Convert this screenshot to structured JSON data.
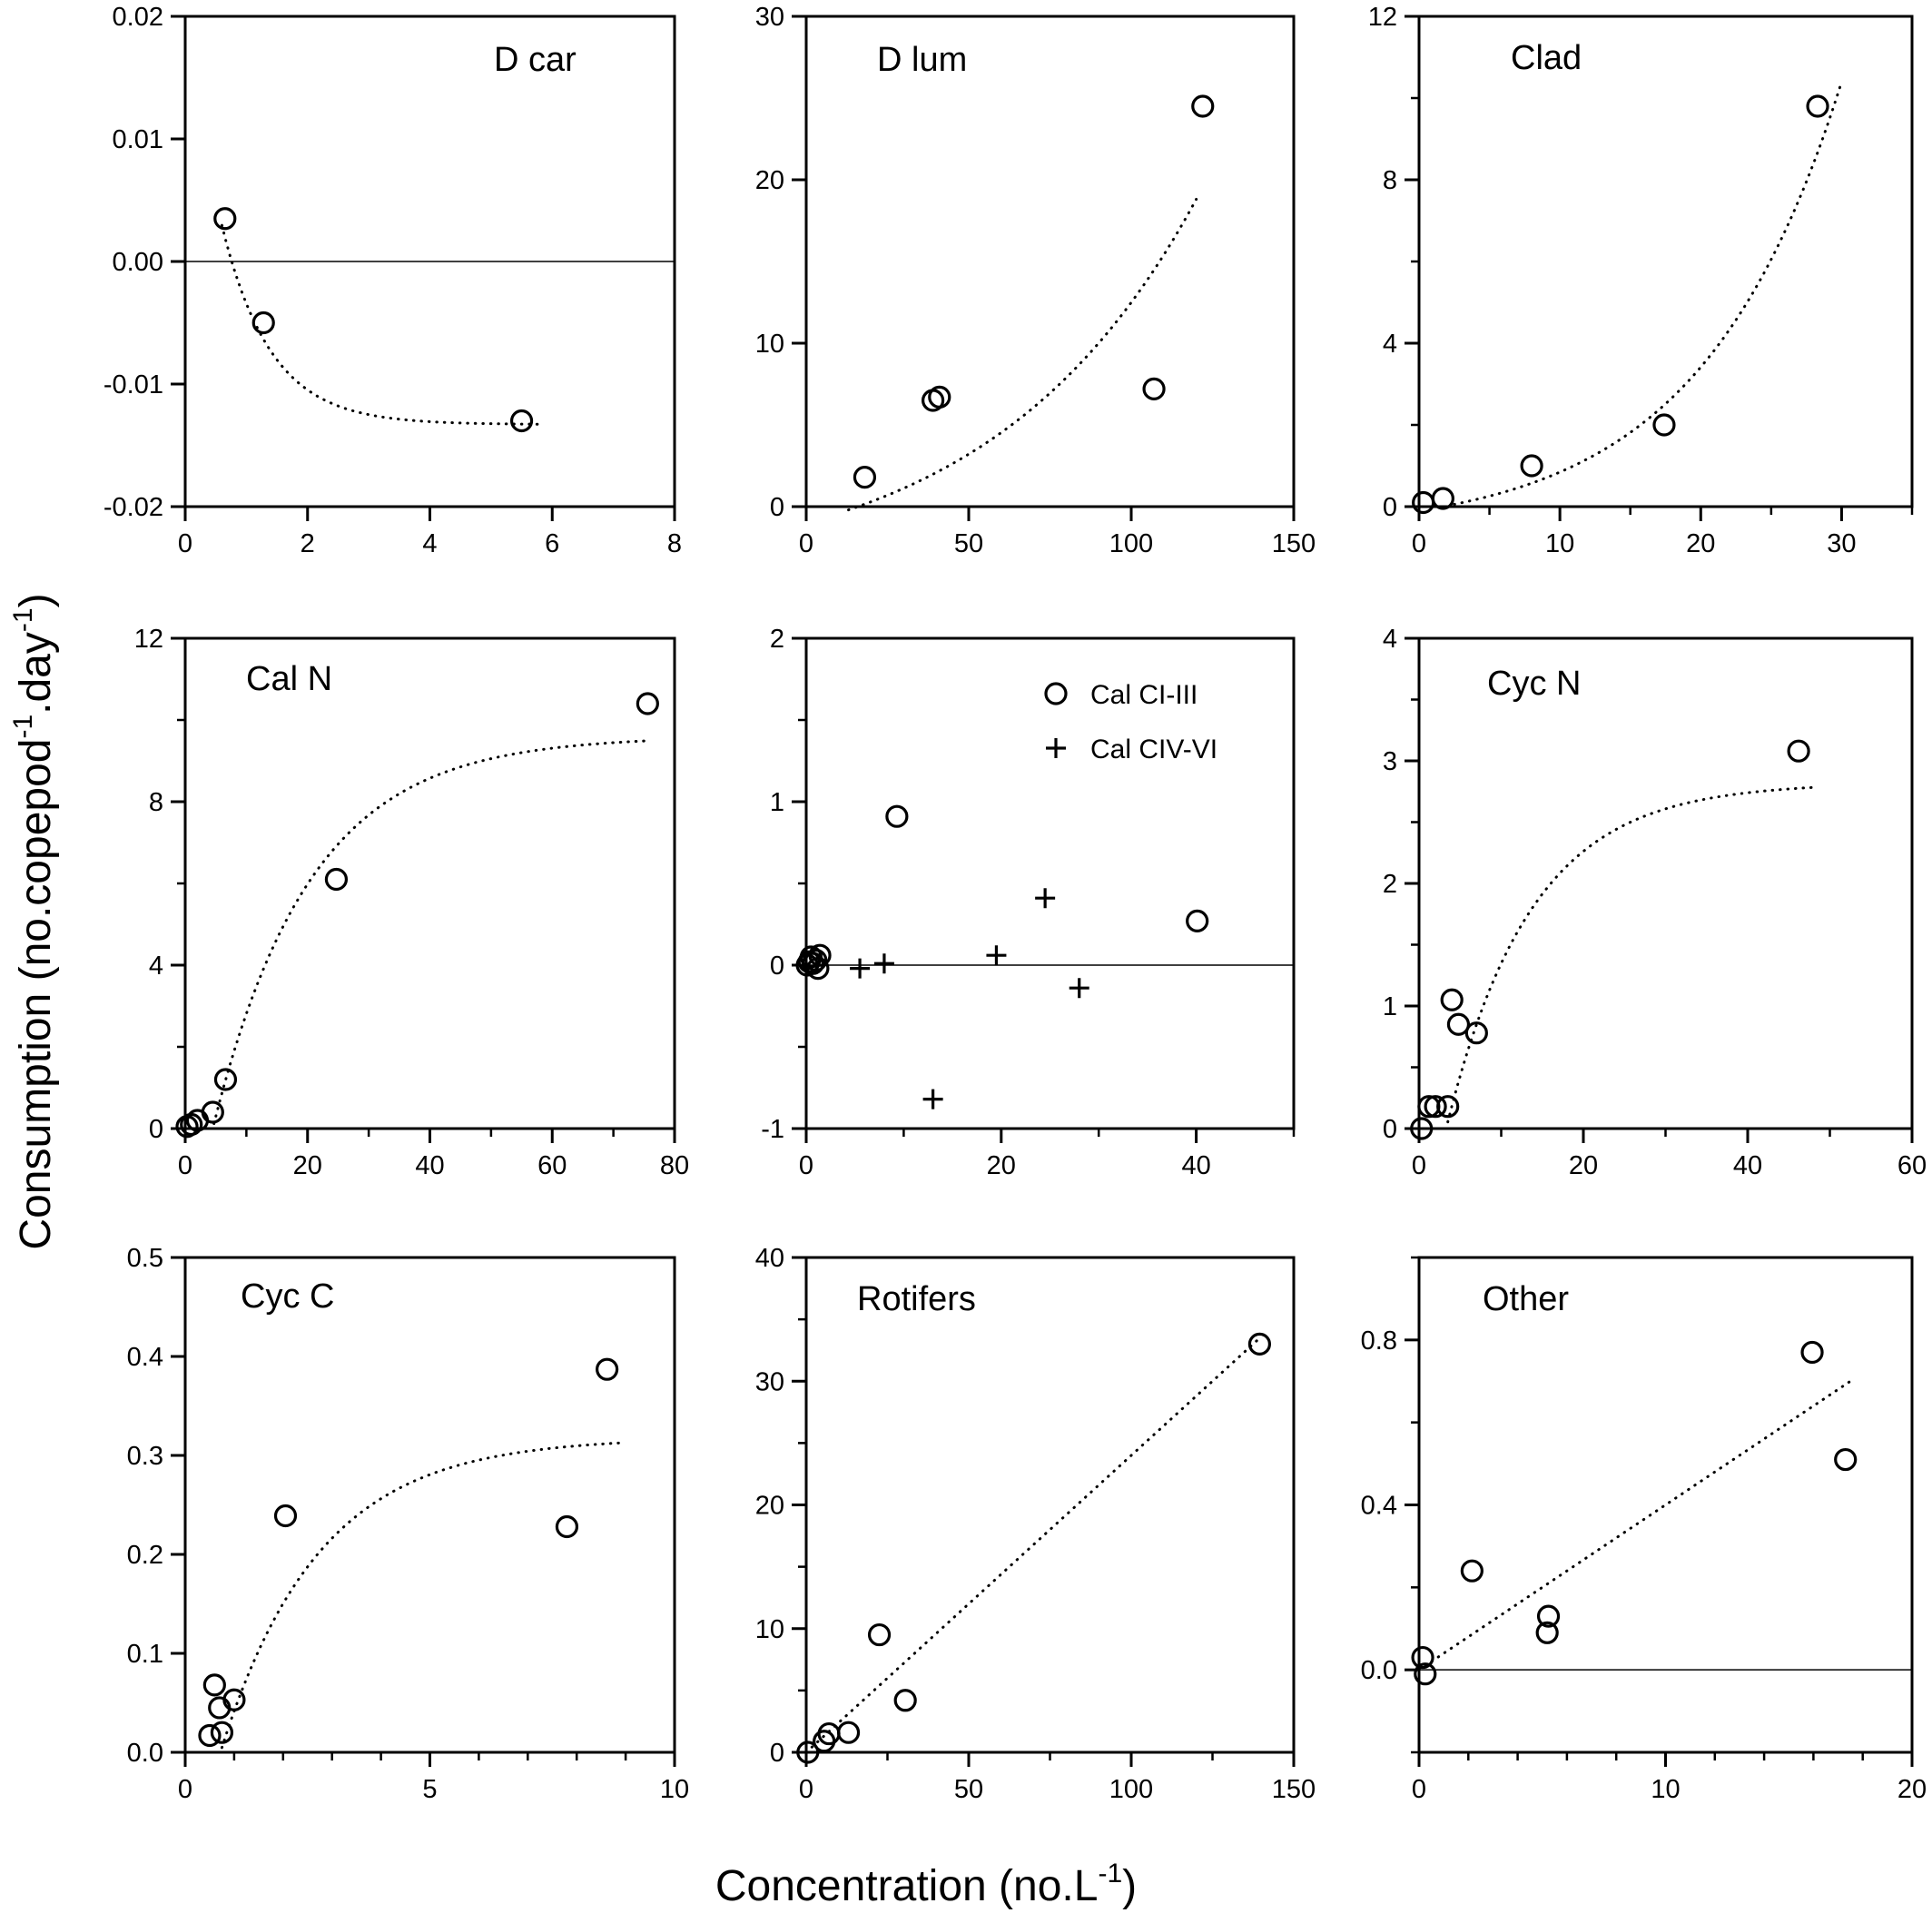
{
  "figure": {
    "xlabel": "Concentration (no.L",
    "xlabel_sup": "-1",
    "xlabel_end": ")",
    "ylabel_part1": "Consumption (no.copepod",
    "ylabel_sup1": "-1",
    "ylabel_part2": ".day",
    "ylabel_sup2": "-1",
    "ylabel_end": ")"
  },
  "chart_data": [
    {
      "type": "scatter",
      "title": "D car",
      "xlim": [
        0,
        8
      ],
      "ylim": [
        -0.02,
        0.02
      ],
      "xticks": [
        0,
        2,
        4,
        6,
        8
      ],
      "xtick_labels": [
        "0",
        "2",
        "4",
        "6",
        "8"
      ],
      "yticks": [
        -0.02,
        -0.01,
        0,
        0.01,
        0.02
      ],
      "ytick_labels": [
        "-0.02",
        "-0.01",
        "0.00",
        "0.01",
        "0.02"
      ],
      "zero_line": true,
      "series": [
        {
          "marker": "circle",
          "x": [
            0.65,
            1.28,
            5.5
          ],
          "y": [
            0.0035,
            -0.005,
            -0.013
          ]
        }
      ],
      "fit": {
        "shape": "exp_decay",
        "params": {
          "a": -0.0133,
          "b": 0.0344,
          "k": 1.25
        },
        "x_range": [
          0.6,
          5.8
        ]
      }
    },
    {
      "type": "scatter",
      "title": "D lum",
      "xlim": [
        0,
        150
      ],
      "ylim": [
        0,
        30
      ],
      "xticks": [
        0,
        50,
        100,
        150
      ],
      "xtick_labels": [
        "0",
        "50",
        "100",
        "150"
      ],
      "yticks": [
        0,
        10,
        20,
        30
      ],
      "ytick_labels": [
        "0",
        "10",
        "20",
        "30"
      ],
      "zero_line": false,
      "series": [
        {
          "marker": "circle",
          "x": [
            18,
            39,
            41,
            107,
            122
          ],
          "y": [
            1.8,
            6.5,
            6.7,
            7.2,
            24.5
          ]
        }
      ],
      "fit": {
        "shape": "exp_growth",
        "params": {
          "a": -4.5,
          "b": 3.5,
          "k": 0.0158
        },
        "x_range": [
          13,
          120
        ]
      }
    },
    {
      "type": "scatter",
      "title": "Clad",
      "xlim": [
        0,
        35
      ],
      "ylim": [
        0,
        12
      ],
      "xticks": [
        0,
        10,
        20,
        30
      ],
      "xtick_labels": [
        "0",
        "10",
        "20",
        "30"
      ],
      "yticks": [
        0,
        4,
        8,
        12
      ],
      "ytick_labels": [
        "0",
        "4",
        "8",
        "12"
      ],
      "minor_xticks": [
        5,
        15,
        25,
        35
      ],
      "minor_yticks": [
        2,
        6,
        10
      ],
      "zero_line": false,
      "series": [
        {
          "marker": "circle",
          "x": [
            0.3,
            1.7,
            8.0,
            17.4,
            28.3
          ],
          "y": [
            0.1,
            0.2,
            1.0,
            2.0,
            9.8
          ]
        }
      ],
      "fit": {
        "shape": "exp_growth",
        "params": {
          "a": -0.65,
          "b": 0.55,
          "k": 0.1
        },
        "x_range": [
          2.5,
          30
        ]
      }
    },
    {
      "type": "scatter",
      "title": "Cal N",
      "xlim": [
        0,
        80
      ],
      "ylim": [
        0,
        12
      ],
      "xticks": [
        0,
        20,
        40,
        60,
        80
      ],
      "xtick_labels": [
        "0",
        "20",
        "40",
        "60",
        "80"
      ],
      "yticks": [
        0,
        4,
        8,
        12
      ],
      "ytick_labels": [
        "0",
        "4",
        "8",
        "12"
      ],
      "minor_xticks": [
        10,
        30,
        50,
        70
      ],
      "minor_yticks": [
        2,
        6,
        10
      ],
      "zero_line": false,
      "series": [
        {
          "marker": "circle",
          "x": [
            0.3,
            1.0,
            2.0,
            4.5,
            6.6,
            24.7,
            75.6
          ],
          "y": [
            0.05,
            0.1,
            0.2,
            0.4,
            1.2,
            6.1,
            10.4
          ]
        }
      ],
      "fit": {
        "shape": "exp_rise",
        "params": {
          "a": 9.6,
          "x0": 4.5,
          "k": 0.063
        },
        "x_range": [
          4.7,
          76
        ]
      }
    },
    {
      "type": "scatter",
      "title": "",
      "xlim": [
        0,
        50
      ],
      "ylim": [
        -1,
        2
      ],
      "xticks": [
        0,
        20,
        40
      ],
      "xtick_labels": [
        "0",
        "20",
        "40"
      ],
      "yticks": [
        -1,
        0,
        1,
        2
      ],
      "ytick_labels": [
        "-1",
        "0",
        "1",
        "2"
      ],
      "minor_xticks": [
        10,
        30,
        50
      ],
      "minor_yticks": [
        -0.5,
        0.5,
        1.5
      ],
      "zero_line": true,
      "legend": {
        "placement": "top-right"
      },
      "series": [
        {
          "name": "Cal CI-III",
          "marker": "circle",
          "x": [
            0.1,
            0.3,
            0.5,
            0.7,
            1.0,
            1.2,
            1.4,
            9.3,
            40.1
          ],
          "y": [
            0.0,
            0.02,
            0.05,
            0.01,
            0.03,
            -0.02,
            0.06,
            0.91,
            0.27
          ]
        },
        {
          "name": "Cal CIV-VI",
          "marker": "plus",
          "x": [
            5.5,
            8.0,
            13.0,
            19.5,
            24.5,
            28.0
          ],
          "y": [
            -0.02,
            0.01,
            -0.82,
            0.06,
            0.41,
            -0.14
          ]
        }
      ]
    },
    {
      "type": "scatter",
      "title": "Cyc N",
      "xlim": [
        0,
        60
      ],
      "ylim": [
        0,
        4
      ],
      "xticks": [
        0,
        20,
        40,
        60
      ],
      "xtick_labels": [
        "0",
        "20",
        "40",
        "60"
      ],
      "yticks": [
        0,
        1,
        2,
        3,
        4
      ],
      "ytick_labels": [
        "0",
        "1",
        "2",
        "3",
        "4"
      ],
      "minor_xticks": [
        10,
        30,
        50
      ],
      "minor_yticks": [
        0.5,
        1.5,
        2.5,
        3.5
      ],
      "zero_line": false,
      "series": [
        {
          "marker": "circle",
          "x": [
            0.3,
            1.2,
            2.0,
            3.5,
            4.0,
            4.8,
            7.0,
            46.2
          ],
          "y": [
            0.0,
            0.18,
            0.18,
            0.18,
            1.05,
            0.85,
            0.78,
            3.08
          ]
        }
      ],
      "fit": {
        "shape": "exp_rise",
        "params": {
          "a": 2.82,
          "x0": 3.3,
          "k": 0.097
        },
        "x_range": [
          3.5,
          48.5
        ]
      }
    },
    {
      "type": "scatter",
      "title": "Cyc C",
      "xlim": [
        0,
        10
      ],
      "ylim": [
        0,
        0.5
      ],
      "xticks": [
        0,
        5,
        10
      ],
      "xtick_labels": [
        "0",
        "5",
        "10"
      ],
      "yticks": [
        0,
        0.1,
        0.2,
        0.3,
        0.4,
        0.5
      ],
      "ytick_labels": [
        "0.0",
        "0.1",
        "0.2",
        "0.3",
        "0.4",
        "0.5"
      ],
      "minor_xticks": [
        1,
        2,
        3,
        4,
        6,
        7,
        8,
        9
      ],
      "zero_line": false,
      "series": [
        {
          "marker": "circle",
          "x": [
            0.5,
            0.6,
            0.7,
            0.75,
            1.0,
            2.05,
            7.8,
            8.62
          ],
          "y": [
            0.017,
            0.068,
            0.045,
            0.02,
            0.053,
            0.239,
            0.228,
            0.387
          ]
        }
      ],
      "fit": {
        "shape": "exp_rise",
        "params": {
          "a": 0.318,
          "x0": 0.72,
          "k": 0.5
        },
        "x_range": [
          0.75,
          8.9
        ]
      }
    },
    {
      "type": "scatter",
      "title": "Rotifers",
      "xlim": [
        0,
        150
      ],
      "ylim": [
        0,
        40
      ],
      "xticks": [
        0,
        50,
        100,
        150
      ],
      "xtick_labels": [
        "0",
        "50",
        "100",
        "150"
      ],
      "yticks": [
        0,
        10,
        20,
        30,
        40
      ],
      "ytick_labels": [
        "0",
        "10",
        "20",
        "30",
        "40"
      ],
      "minor_xticks": [
        25,
        75,
        125
      ],
      "minor_yticks": [
        5,
        15,
        25,
        35
      ],
      "zero_line": false,
      "series": [
        {
          "marker": "circle",
          "x": [
            0.5,
            5.5,
            7.0,
            13.0,
            22.5,
            30.5,
            139.5
          ],
          "y": [
            0.0,
            0.9,
            1.5,
            1.6,
            9.5,
            4.2,
            33.0
          ]
        }
      ],
      "fit": {
        "shape": "linear",
        "params": {
          "m": 0.24,
          "c": 0.0
        },
        "x_range": [
          0,
          140
        ]
      }
    },
    {
      "type": "scatter",
      "title": "Other",
      "xlim": [
        0,
        20
      ],
      "ylim": [
        -0.2,
        1.0
      ],
      "xticks": [
        0,
        10,
        20
      ],
      "xtick_labels": [
        "0",
        "10",
        "20"
      ],
      "yticks": [
        0,
        0.4,
        0.8
      ],
      "ytick_labels": [
        "0.0",
        "0.4",
        "0.8"
      ],
      "minor_xticks": [
        2,
        4,
        6,
        8,
        12,
        14,
        16,
        18
      ],
      "minor_yticks": [
        -0.2,
        0.2,
        0.6,
        1.0
      ],
      "zero_line": true,
      "series": [
        {
          "marker": "circle",
          "x": [
            0.15,
            0.25,
            2.15,
            5.2,
            5.25,
            15.95,
            17.3
          ],
          "y": [
            0.03,
            -0.01,
            0.24,
            0.09,
            0.13,
            0.77,
            0.51
          ]
        }
      ],
      "fit": {
        "shape": "linear",
        "params": {
          "m": 0.04,
          "c": 0.0
        },
        "x_range": [
          0,
          17.5
        ]
      }
    }
  ]
}
